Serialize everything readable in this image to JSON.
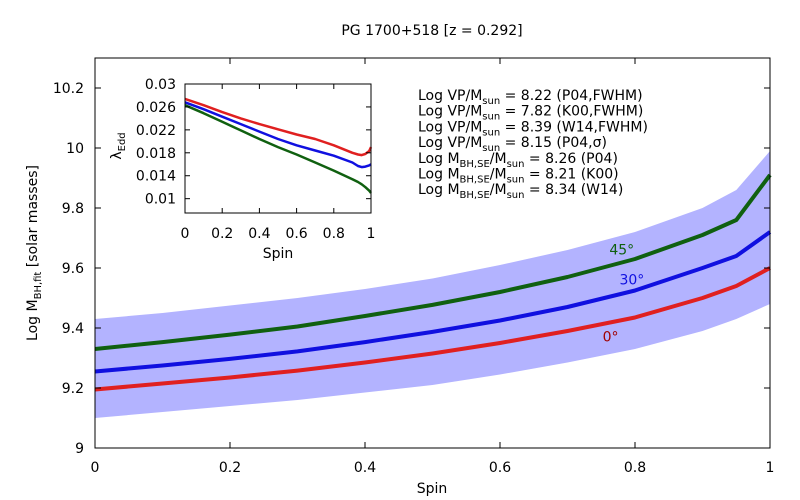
{
  "chart_data": [
    {
      "type": "line",
      "title": "PG 1700+518  [z = 0.292]",
      "xlabel": "Spin",
      "ylabel_main": "Log M",
      "ylabel_sub": "BH,fit",
      "ylabel_tail": "  [solar masses]",
      "xlim": [
        0,
        1
      ],
      "ylim": [
        9.0,
        10.3
      ],
      "xticks": [
        0,
        0.2,
        0.4,
        0.6,
        0.8,
        1
      ],
      "xtick_labels": [
        "0",
        "0.2",
        "0.4",
        "0.6",
        "0.8",
        "1"
      ],
      "yticks": [
        9.0,
        9.2,
        9.4,
        9.6,
        9.8,
        10.0,
        10.2
      ],
      "ytick_labels": [
        "9",
        "9.2",
        "9.4",
        "9.6",
        "9.8",
        "10",
        "10.2"
      ],
      "band": {
        "color": "#b3b3ff",
        "x": [
          0,
          0.1,
          0.2,
          0.3,
          0.4,
          0.5,
          0.6,
          0.7,
          0.8,
          0.9,
          0.95,
          1.0
        ],
        "lower": [
          9.1,
          9.12,
          9.14,
          9.16,
          9.185,
          9.21,
          9.245,
          9.285,
          9.33,
          9.39,
          9.43,
          9.48
        ],
        "upper": [
          9.43,
          9.45,
          9.475,
          9.5,
          9.53,
          9.565,
          9.61,
          9.66,
          9.72,
          9.8,
          9.86,
          9.99
        ]
      },
      "series": [
        {
          "name": "0°",
          "color": "#e02020",
          "x": [
            0,
            0.1,
            0.2,
            0.3,
            0.4,
            0.5,
            0.6,
            0.7,
            0.8,
            0.9,
            0.95,
            1.0
          ],
          "y": [
            9.195,
            9.215,
            9.235,
            9.258,
            9.285,
            9.315,
            9.35,
            9.39,
            9.435,
            9.5,
            9.54,
            9.6
          ]
        },
        {
          "name": "30°",
          "color": "#1010e0",
          "x": [
            0,
            0.1,
            0.2,
            0.3,
            0.4,
            0.5,
            0.6,
            0.7,
            0.8,
            0.9,
            0.95,
            1.0
          ],
          "y": [
            9.255,
            9.275,
            9.297,
            9.322,
            9.353,
            9.387,
            9.425,
            9.47,
            9.525,
            9.6,
            9.64,
            9.72
          ]
        },
        {
          "name": "45°",
          "color": "#106010",
          "x": [
            0,
            0.1,
            0.2,
            0.3,
            0.4,
            0.5,
            0.6,
            0.7,
            0.8,
            0.9,
            0.95,
            1.0
          ],
          "y": [
            9.33,
            9.353,
            9.378,
            9.405,
            9.44,
            9.477,
            9.52,
            9.57,
            9.63,
            9.71,
            9.76,
            9.91
          ]
        }
      ],
      "series_labels": [
        {
          "text": "0°",
          "color": "#a00000",
          "x": 0.752,
          "y": 9.355
        },
        {
          "text": "30°",
          "color": "#1010e0",
          "x": 0.777,
          "y": 9.545
        },
        {
          "text": "45°",
          "color": "#106010",
          "x": 0.762,
          "y": 9.645
        }
      ],
      "annotations": [
        {
          "pre": "Log VP/M",
          "sub": "sun",
          "post": " = 8.22 (P04,FWHM)"
        },
        {
          "pre": "Log VP/M",
          "sub": "sun",
          "post": " = 7.82 (K00,FWHM)"
        },
        {
          "pre": "Log VP/M",
          "sub": "sun",
          "post": " = 8.39 (W14,FWHM)"
        },
        {
          "pre": "Log VP/M",
          "sub": "sun",
          "post": " = 8.15 (P04,σ)"
        },
        {
          "pre": "Log M",
          "sub": "BH,SE",
          "mid": "/M",
          "sub2": "sun",
          "post": " = 8.26 (P04)"
        },
        {
          "pre": "Log M",
          "sub": "BH,SE",
          "mid": "/M",
          "sub2": "sun",
          "post": " = 8.21 (K00)"
        },
        {
          "pre": "Log M",
          "sub": "BH,SE",
          "mid": "/M",
          "sub2": "sun",
          "post": " = 8.34 (W14)"
        }
      ],
      "grid": false
    },
    {
      "type": "line",
      "title": "",
      "xlabel": "Spin",
      "ylabel_main": "λ",
      "ylabel_sub": "Edd",
      "xlim": [
        0,
        1
      ],
      "ylim": [
        0.0075,
        0.03
      ],
      "xticks": [
        0,
        0.2,
        0.4,
        0.6,
        0.8,
        1
      ],
      "xtick_labels": [
        "0",
        "0.2",
        "0.4",
        "0.6",
        "0.8",
        "1"
      ],
      "yticks": [
        0.01,
        0.014,
        0.018,
        0.022,
        0.026,
        0.03
      ],
      "ytick_labels": [
        "0.01",
        "0.014",
        "0.018",
        "0.022",
        "0.026",
        "0.03"
      ],
      "series": [
        {
          "name": "0°",
          "color": "#e02020",
          "x": [
            0,
            0.1,
            0.2,
            0.3,
            0.4,
            0.5,
            0.6,
            0.7,
            0.8,
            0.9,
            0.93,
            0.95,
            0.97,
            0.99,
            1.0
          ],
          "y": [
            0.0274,
            0.0263,
            0.0251,
            0.024,
            0.023,
            0.0221,
            0.0212,
            0.0204,
            0.0193,
            0.018,
            0.0177,
            0.0176,
            0.0178,
            0.0183,
            0.019
          ]
        },
        {
          "name": "30°",
          "color": "#1010e0",
          "x": [
            0,
            0.1,
            0.2,
            0.3,
            0.4,
            0.5,
            0.6,
            0.7,
            0.8,
            0.9,
            0.93,
            0.95,
            0.97,
            0.99,
            1.0
          ],
          "y": [
            0.0268,
            0.0256,
            0.0243,
            0.023,
            0.0217,
            0.0204,
            0.0193,
            0.0184,
            0.0175,
            0.0163,
            0.0157,
            0.0155,
            0.0156,
            0.0158,
            0.016
          ]
        },
        {
          "name": "45°",
          "color": "#106010",
          "x": [
            0,
            0.1,
            0.2,
            0.3,
            0.4,
            0.5,
            0.6,
            0.7,
            0.8,
            0.9,
            0.93,
            0.95,
            0.97,
            0.99,
            1.0
          ],
          "y": [
            0.0263,
            0.0249,
            0.0234,
            0.0219,
            0.0204,
            0.019,
            0.0177,
            0.0163,
            0.0149,
            0.0134,
            0.0129,
            0.0125,
            0.012,
            0.0114,
            0.011
          ]
        }
      ],
      "grid": false
    }
  ]
}
